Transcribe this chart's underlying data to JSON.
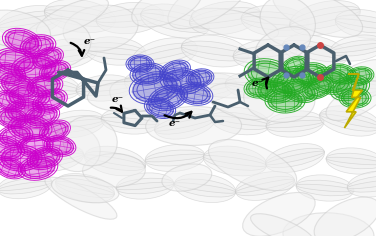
{
  "bg_color": "#ffffff",
  "ribbon_color": "#f0f0f0",
  "ribbon_edge": "#c8c8c8",
  "mol_color": "#4a5f6e",
  "magenta": "#cc00cc",
  "blue_blob": "#4444cc",
  "green_blob": "#22aa22",
  "arrow_color": "#111111",
  "lightning_fill": "#ffee00",
  "lightning_edge": "#bbaa00",
  "e_minus": "e⁻",
  "fig_width": 3.76,
  "fig_height": 2.36,
  "dpi": 100,
  "mag_blobs": [
    [
      22,
      195,
      20,
      12,
      -15
    ],
    [
      38,
      190,
      18,
      11,
      10
    ],
    [
      15,
      175,
      22,
      13,
      -5
    ],
    [
      48,
      178,
      16,
      10,
      20
    ],
    [
      8,
      162,
      18,
      11,
      -10
    ],
    [
      35,
      168,
      24,
      14,
      5
    ],
    [
      55,
      165,
      16,
      10,
      15
    ],
    [
      18,
      150,
      20,
      12,
      -20
    ],
    [
      45,
      150,
      18,
      11,
      10
    ],
    [
      28,
      140,
      22,
      13,
      0
    ],
    [
      10,
      135,
      16,
      10,
      -15
    ],
    [
      50,
      135,
      18,
      11,
      20
    ],
    [
      25,
      125,
      20,
      12,
      5
    ],
    [
      12,
      118,
      16,
      10,
      -10
    ],
    [
      42,
      120,
      18,
      11,
      15
    ],
    [
      30,
      108,
      22,
      13,
      -5
    ],
    [
      15,
      100,
      18,
      11,
      10
    ],
    [
      55,
      105,
      16,
      10,
      20
    ],
    [
      5,
      88,
      20,
      12,
      -15
    ],
    [
      35,
      90,
      18,
      11,
      5
    ],
    [
      60,
      90,
      16,
      10,
      -10
    ],
    [
      20,
      78,
      22,
      13,
      0
    ],
    [
      45,
      78,
      18,
      11,
      15
    ],
    [
      10,
      68,
      16,
      10,
      -20
    ],
    [
      38,
      68,
      20,
      12,
      10
    ]
  ],
  "blue_blobs": [
    [
      155,
      148,
      26,
      16,
      10
    ],
    [
      182,
      155,
      22,
      13,
      -5
    ],
    [
      168,
      138,
      20,
      12,
      15
    ],
    [
      195,
      142,
      18,
      11,
      -10
    ],
    [
      148,
      162,
      18,
      11,
      5
    ],
    [
      175,
      165,
      16,
      10,
      20
    ],
    [
      160,
      128,
      16,
      10,
      -15
    ],
    [
      140,
      172,
      14,
      9,
      0
    ],
    [
      200,
      158,
      14,
      9,
      10
    ]
  ],
  "green_blobs": [
    [
      268,
      162,
      24,
      15,
      -10
    ],
    [
      292,
      155,
      22,
      14,
      15
    ],
    [
      275,
      145,
      20,
      12,
      -5
    ],
    [
      310,
      162,
      18,
      11,
      10
    ],
    [
      285,
      135,
      20,
      12,
      0
    ],
    [
      300,
      145,
      18,
      11,
      -15
    ],
    [
      318,
      148,
      16,
      10,
      20
    ],
    [
      260,
      148,
      16,
      10,
      5
    ],
    [
      330,
      155,
      22,
      13,
      -10
    ],
    [
      350,
      148,
      20,
      12,
      15
    ],
    [
      340,
      162,
      16,
      10,
      -5
    ],
    [
      360,
      160,
      14,
      9,
      10
    ],
    [
      355,
      138,
      16,
      10,
      0
    ],
    [
      295,
      170,
      14,
      9,
      20
    ]
  ],
  "ribbon_loops": [
    [
      30,
      215,
      65,
      42,
      10
    ],
    [
      80,
      220,
      72,
      46,
      -8
    ],
    [
      130,
      218,
      68,
      44,
      5
    ],
    [
      175,
      215,
      70,
      45,
      -12
    ],
    [
      225,
      218,
      72,
      46,
      8
    ],
    [
      275,
      215,
      68,
      44,
      -5
    ],
    [
      325,
      218,
      72,
      46,
      12
    ],
    [
      365,
      212,
      60,
      40,
      -8
    ],
    [
      15,
      185,
      58,
      38,
      -15
    ],
    [
      65,
      182,
      65,
      42,
      8
    ],
    [
      115,
      185,
      62,
      40,
      -5
    ],
    [
      165,
      182,
      66,
      43,
      12
    ],
    [
      215,
      185,
      68,
      44,
      -8
    ],
    [
      265,
      182,
      64,
      41,
      5
    ],
    [
      315,
      185,
      66,
      43,
      -12
    ],
    [
      358,
      188,
      56,
      36,
      8
    ],
    [
      0,
      155,
      52,
      34,
      10
    ],
    [
      50,
      150,
      60,
      38,
      -8
    ],
    [
      105,
      148,
      58,
      37,
      5
    ],
    [
      155,
      150,
      62,
      40,
      -10
    ],
    [
      205,
      148,
      64,
      41,
      8
    ],
    [
      255,
      150,
      60,
      38,
      -5
    ],
    [
      305,
      148,
      62,
      40,
      12
    ],
    [
      355,
      152,
      58,
      37,
      -8
    ],
    [
      25,
      115,
      55,
      35,
      -12
    ],
    [
      75,
      112,
      60,
      38,
      8
    ],
    [
      130,
      115,
      58,
      37,
      -5
    ],
    [
      185,
      112,
      62,
      40,
      12
    ],
    [
      240,
      115,
      60,
      38,
      -8
    ],
    [
      295,
      112,
      58,
      37,
      5
    ],
    [
      350,
      115,
      62,
      40,
      -12
    ],
    [
      55,
      78,
      58,
      37,
      8
    ],
    [
      115,
      75,
      62,
      40,
      -10
    ],
    [
      175,
      78,
      60,
      38,
      5
    ],
    [
      235,
      75,
      64,
      41,
      -8
    ],
    [
      295,
      78,
      60,
      38,
      12
    ],
    [
      355,
      75,
      58,
      37,
      -5
    ],
    [
      25,
      50,
      55,
      35,
      8
    ],
    [
      85,
      48,
      60,
      38,
      -12
    ],
    [
      145,
      50,
      58,
      37,
      5
    ],
    [
      205,
      48,
      62,
      40,
      -8
    ],
    [
      265,
      50,
      60,
      38,
      12
    ],
    [
      325,
      48,
      58,
      37,
      -5
    ],
    [
      375,
      52,
      56,
      36,
      8
    ]
  ]
}
